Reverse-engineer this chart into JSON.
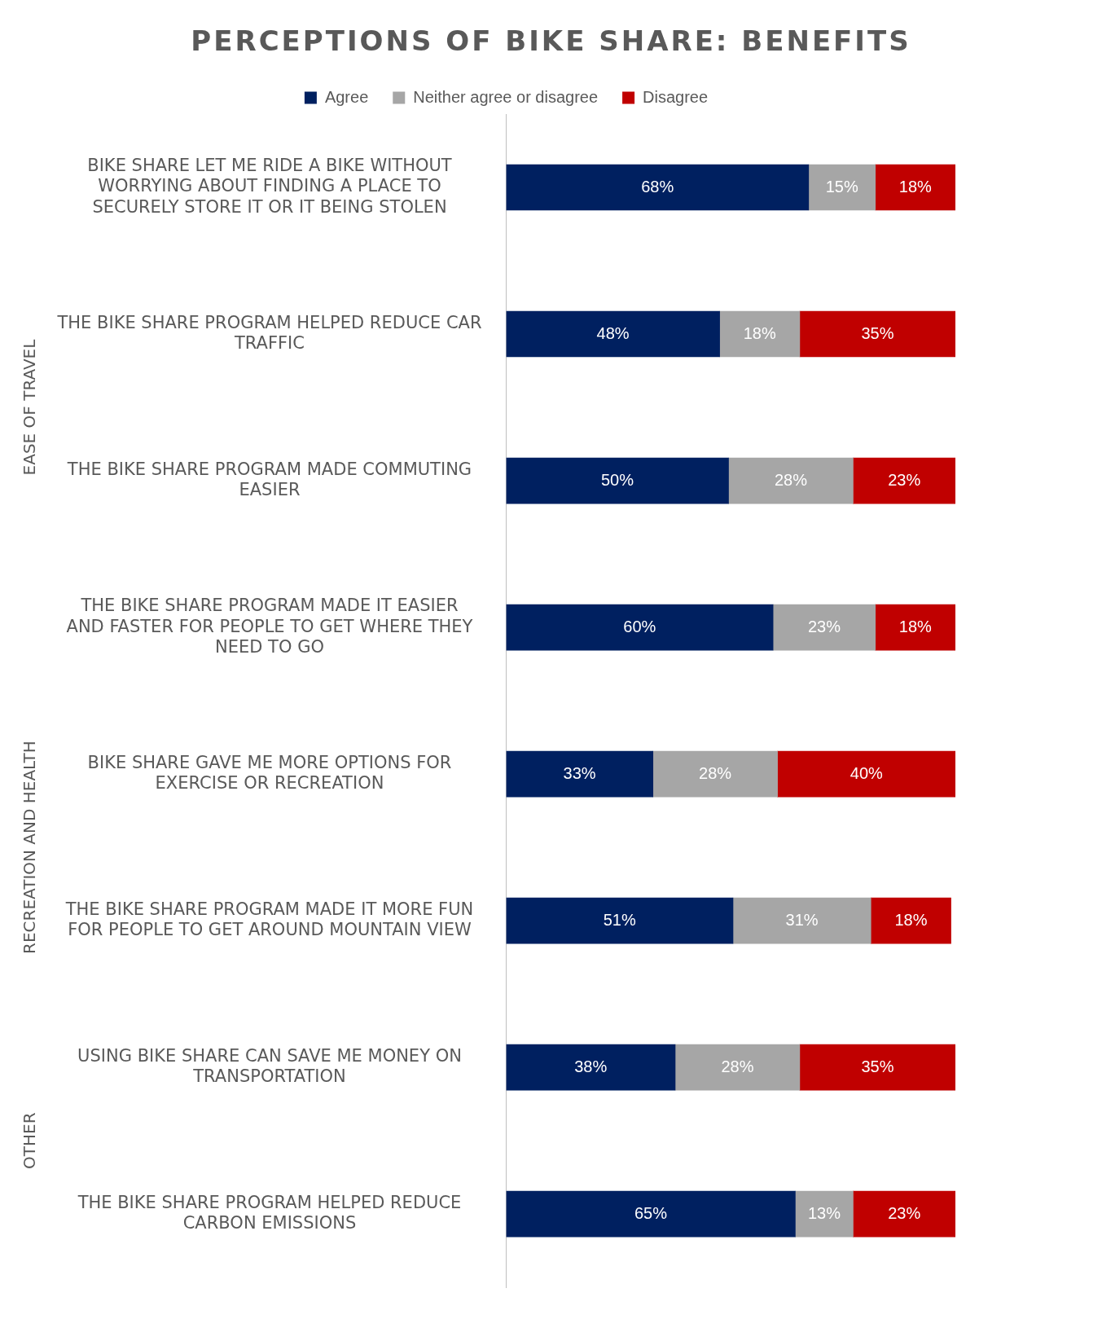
{
  "chart_data": {
    "type": "bar",
    "orientation": "horizontal",
    "stacked": true,
    "title": "PERCEPTIONS OF BIKE SHARE: BENEFITS",
    "legend": "top",
    "categories": [
      "BIKE SHARE LET ME RIDE A BIKE WITHOUT WORRYING ABOUT FINDING A PLACE TO SECURELY STORE IT OR IT BEING STOLEN",
      "THE BIKE SHARE PROGRAM HELPED REDUCE CAR TRAFFIC",
      "THE BIKE SHARE PROGRAM MADE COMMUTING EASIER",
      "THE BIKE SHARE PROGRAM MADE IT EASIER AND FASTER FOR PEOPLE TO GET WHERE THEY NEED TO GO",
      "BIKE SHARE GAVE ME MORE OPTIONS FOR EXERCISE OR RECREATION",
      "THE BIKE SHARE PROGRAM MADE IT MORE FUN FOR PEOPLE TO GET AROUND MOUNTAIN VIEW",
      "USING BIKE SHARE CAN SAVE ME MONEY ON TRANSPORTATION",
      "THE BIKE SHARE PROGRAM HELPED REDUCE CARBON EMISSIONS"
    ],
    "series": [
      {
        "name": "Agree",
        "color": "#002060",
        "values": [
          68,
          48,
          50,
          60,
          33,
          51,
          38,
          65
        ],
        "value_labels": [
          "68%",
          "48%",
          "50%",
          "60%",
          "33%",
          "51%",
          "38%",
          "65%"
        ]
      },
      {
        "name": "Neither agree or disagree",
        "color": "#a6a6a6",
        "values": [
          15,
          18,
          28,
          23,
          28,
          31,
          28,
          13
        ],
        "value_labels": [
          "15%",
          "18%",
          "28%",
          "23%",
          "28%",
          "31%",
          "28%",
          "13%"
        ]
      },
      {
        "name": "Disagree",
        "color": "#c00000",
        "values": [
          18,
          35,
          23,
          18,
          40,
          18,
          35,
          23
        ],
        "value_labels": [
          "18%",
          "35%",
          "23%",
          "18%",
          "40%",
          "18%",
          "35%",
          "23%"
        ]
      }
    ],
    "annotations": [
      "EASE OF TRAVEL",
      "RECREATION AND HEALTH",
      "OTHER"
    ]
  }
}
